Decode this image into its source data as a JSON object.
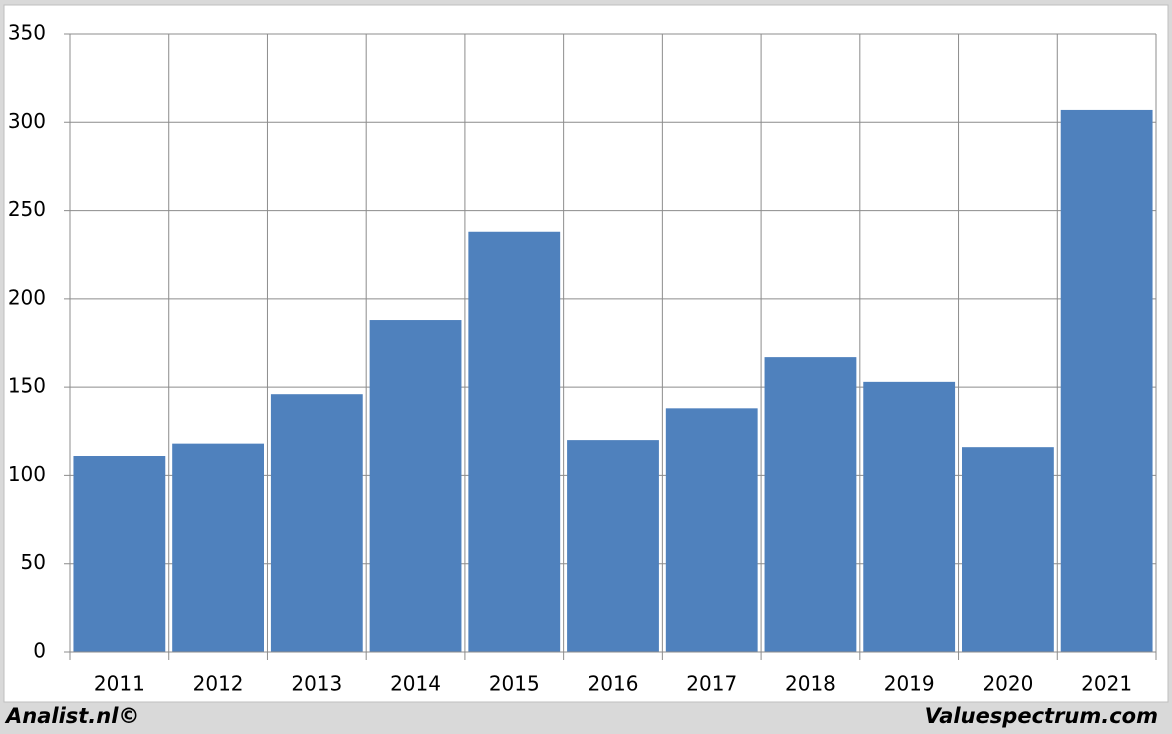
{
  "chart_data": {
    "type": "bar",
    "categories": [
      "2011",
      "2012",
      "2013",
      "2014",
      "2015",
      "2016",
      "2017",
      "2018",
      "2019",
      "2020",
      "2021"
    ],
    "values": [
      111,
      118,
      146,
      188,
      238,
      120,
      138,
      167,
      153,
      116,
      307
    ],
    "color": "#4f81bd",
    "ylim": [
      0,
      350
    ],
    "yticks": [
      0,
      50,
      100,
      150,
      200,
      250,
      300,
      350
    ],
    "grid": true,
    "annotations": [
      "Analist.nl©",
      "Valuespectrum.com"
    ]
  }
}
